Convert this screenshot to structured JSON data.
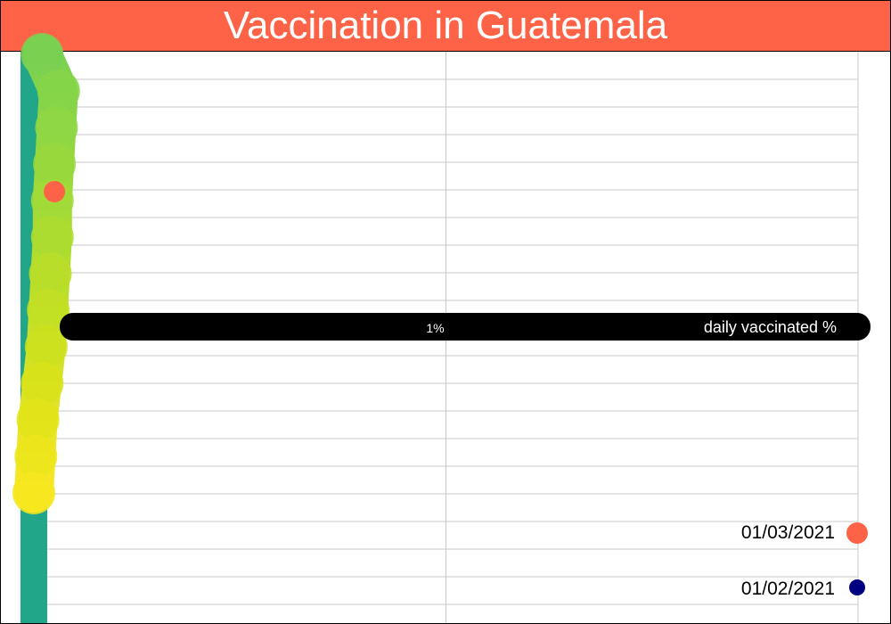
{
  "title": "Vaccination in Guatemala",
  "colors": {
    "title_bg": "#ff6347",
    "title_text": "#ffffff",
    "baseline_bar": "#21a689",
    "indicator_bar": "#000000",
    "legend_recent": "#ff6347",
    "legend_older": "#000080"
  },
  "chart_data": {
    "type": "line",
    "orientation": "vertical-time",
    "title": "Vaccination in Guatemala",
    "xlabel": "daily vaccinated %",
    "ylabel": "",
    "xlim": [
      0,
      2
    ],
    "x_ticks": [
      {
        "value": 1,
        "label": "1%"
      }
    ],
    "grid": true,
    "series": [
      {
        "values": [
          0.02,
          0.06,
          0.055,
          0.05,
          0.045,
          0.045,
          0.04,
          0.035,
          0.03,
          0.02,
          0.01,
          0.005,
          0.0
        ]
      }
    ],
    "highlight_point": {
      "value": 0.05,
      "color": "#ff6347"
    },
    "legend": {
      "placement": "bottom-right",
      "entries": [
        {
          "label": "01/03/2021",
          "color": "#ff6347"
        },
        {
          "label": "01/02/2021",
          "color": "#000080"
        }
      ]
    }
  }
}
